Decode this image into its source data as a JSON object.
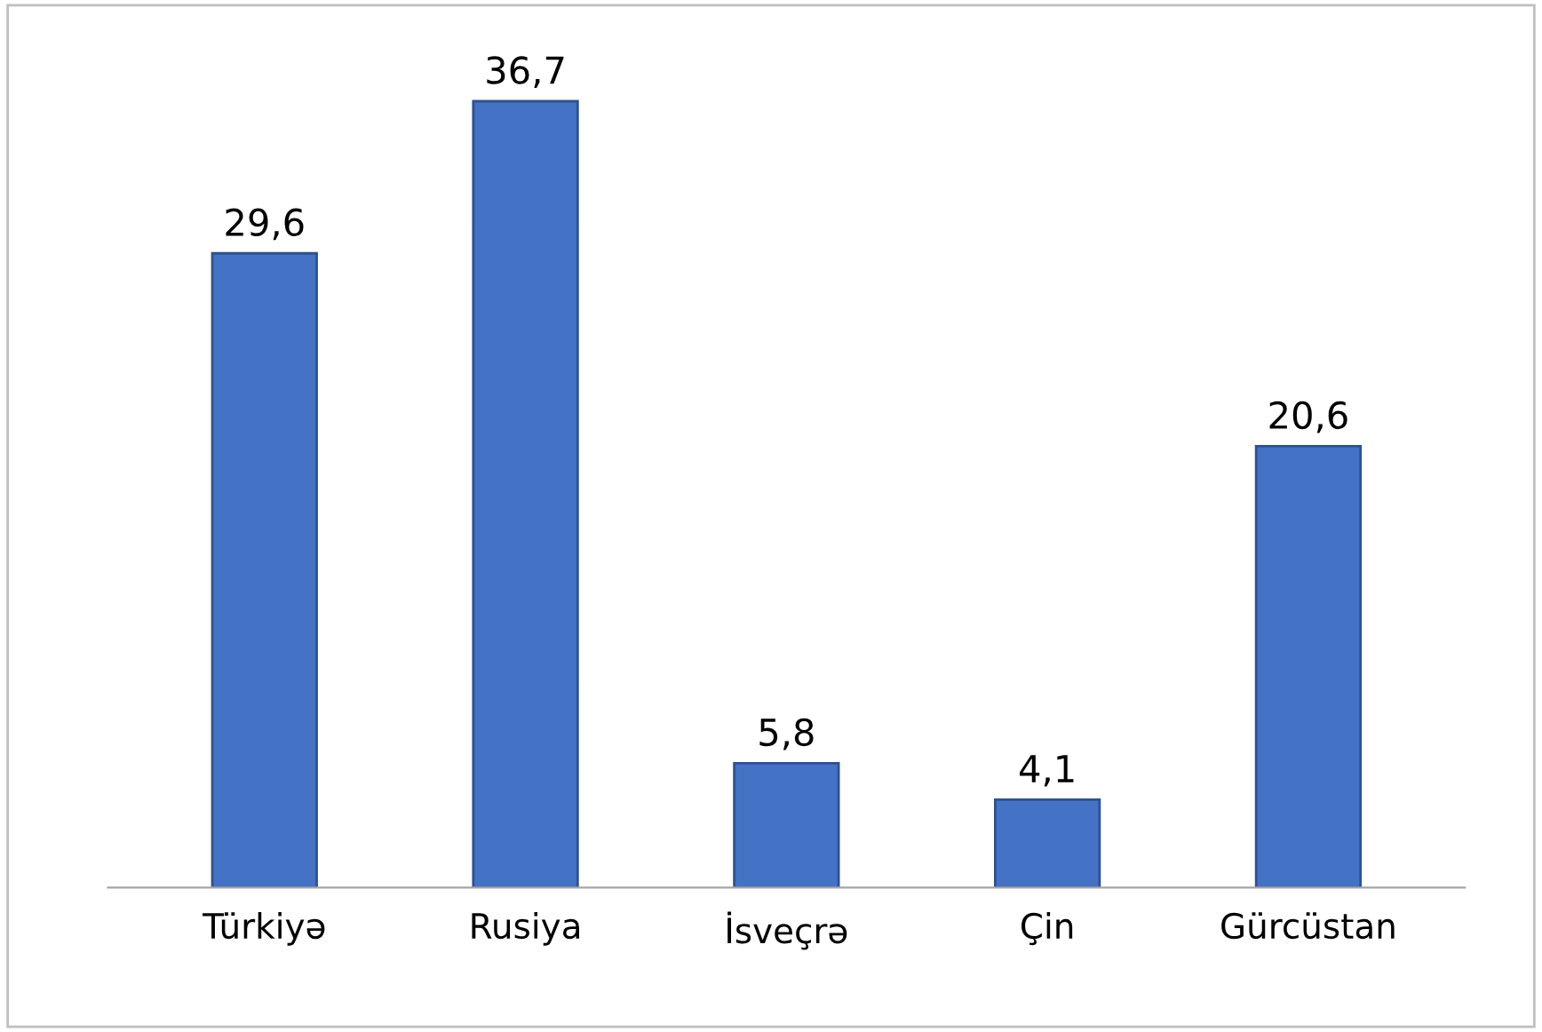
{
  "chart_data": {
    "type": "bar",
    "categories": [
      "Türkiyə",
      "Rusiya",
      "İsveçrə",
      "Çin",
      "Gürcüstan"
    ],
    "values": [
      29.6,
      36.7,
      5.8,
      4.1,
      20.6
    ],
    "value_labels": [
      "29,6",
      "36,7",
      "5,8",
      "4,1",
      "20,6"
    ],
    "color": "#4472c4",
    "grid": false,
    "legend": false,
    "tick_labels": "x"
  }
}
